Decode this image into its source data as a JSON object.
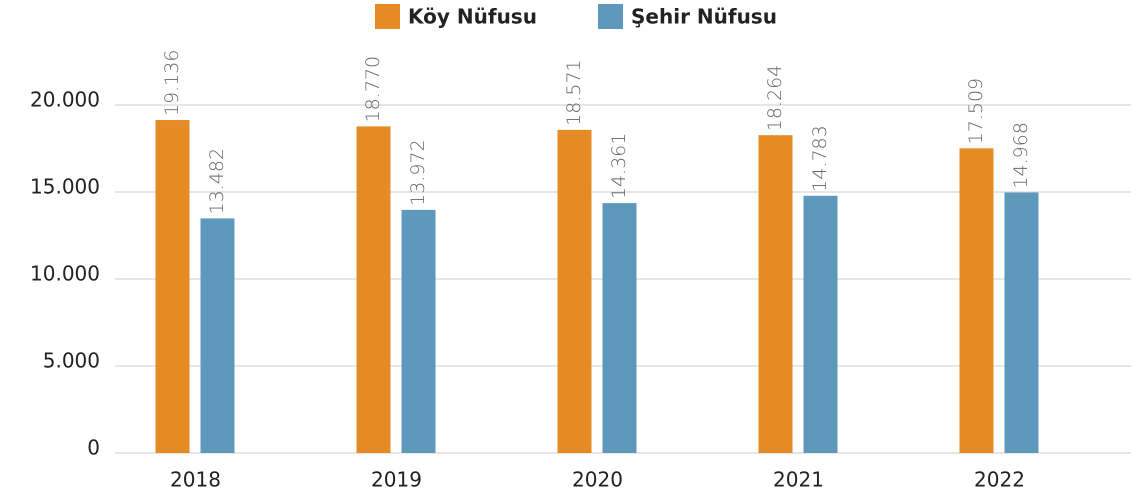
{
  "chart_data": {
    "type": "bar",
    "categories": [
      "2018",
      "2019",
      "2020",
      "2021",
      "2022"
    ],
    "series": [
      {
        "name": "Köy Nüfusu",
        "color": "#e58b25",
        "values": [
          19136,
          18770,
          18571,
          18264,
          17509
        ],
        "value_labels": [
          "19.136",
          "18.770",
          "18.571",
          "18.264",
          "17.509"
        ]
      },
      {
        "name": "Şehir Nüfusu",
        "color": "#5e98bb",
        "values": [
          13482,
          13972,
          14361,
          14783,
          14968
        ],
        "value_labels": [
          "13.482",
          "13.972",
          "14.361",
          "14.783",
          "14.968"
        ]
      }
    ],
    "ylim": [
      0,
      20000
    ],
    "yticks": [
      0,
      {
        "value": 5000,
        "label": "5.000"
      },
      {
        "value": 10000,
        "label": "10.000"
      },
      {
        "value": 15000,
        "label": "15.000"
      },
      {
        "value": 20000,
        "label": "20.000"
      }
    ],
    "grid": true,
    "legend": "top"
  }
}
